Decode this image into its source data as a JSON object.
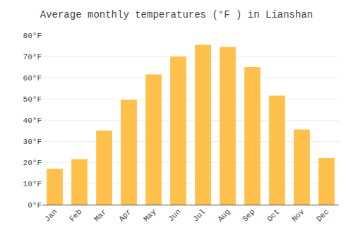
{
  "chart_data": {
    "type": "bar",
    "title": "Average monthly temperatures (°F ) in Lianshan",
    "categories": [
      "Jan",
      "Feb",
      "Mar",
      "Apr",
      "May",
      "Jun",
      "Jul",
      "Aug",
      "Sep",
      "Oct",
      "Nov",
      "Dec"
    ],
    "values": [
      17,
      21.5,
      35,
      49.5,
      61.5,
      70,
      75.5,
      74.5,
      65,
      51.5,
      35.5,
      22
    ],
    "color": "#FFC04C",
    "ylim": [
      0,
      80
    ],
    "yticks": [
      {
        "value": 0,
        "label": "0°F"
      },
      {
        "value": 10,
        "label": "10°F"
      },
      {
        "value": 20,
        "label": "20°F"
      },
      {
        "value": 30,
        "label": "30°F"
      },
      {
        "value": 40,
        "label": "40°F"
      },
      {
        "value": 50,
        "label": "50°F"
      },
      {
        "value": 60,
        "label": "60°F"
      },
      {
        "value": 70,
        "label": "70°F"
      },
      {
        "value": 80,
        "label": "80°F"
      }
    ],
    "grid": true
  }
}
